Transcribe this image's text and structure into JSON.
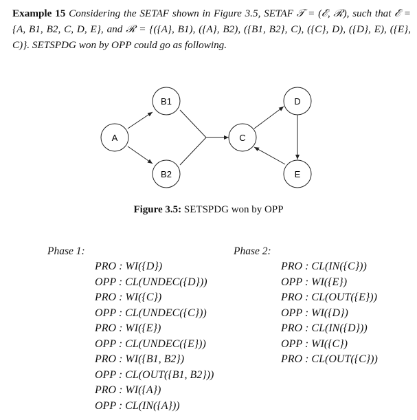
{
  "example": {
    "label": "Example 15",
    "text": "Considering the SETAF shown in Figure 3.5, SETAF 𝒯 = (ℰ, ℛ), such that ℰ = {A, B1, B2, C, D, E}, and ℛ = {({A}, B1), ({A}, B2), ({B1, B2}, C), ({C}, D), ({D}, E), ({E}, C)}. SETSPDG won by OPP could go as following."
  },
  "figure": {
    "nodes": [
      {
        "id": "A",
        "label": "A"
      },
      {
        "id": "B1",
        "label": "B1"
      },
      {
        "id": "B2",
        "label": "B2"
      },
      {
        "id": "C",
        "label": "C"
      },
      {
        "id": "D",
        "label": "D"
      },
      {
        "id": "E",
        "label": "E"
      }
    ],
    "edges": [
      {
        "from": [
          "A"
        ],
        "to": "B1"
      },
      {
        "from": [
          "A"
        ],
        "to": "B2"
      },
      {
        "from": [
          "B1",
          "B2"
        ],
        "to": "C"
      },
      {
        "from": [
          "C"
        ],
        "to": "D"
      },
      {
        "from": [
          "D"
        ],
        "to": "E"
      },
      {
        "from": [
          "E"
        ],
        "to": "C"
      }
    ],
    "caption_label": "Figure 3.5:",
    "caption_text": "SETSPDG won by OPP"
  },
  "phase1": {
    "title": "Phase 1:",
    "moves": [
      "PRO : WI({D})",
      "OPP : CL(UNDEC({D}))",
      "PRO : WI({C})",
      "OPP : CL(UNDEC({C}))",
      "PRO : WI({E})",
      "OPP : CL(UNDEC({E}))",
      "PRO : WI({B1, B2})",
      "OPP : CL(OUT({B1, B2}))",
      "PRO : WI({A})",
      "OPP : CL(IN({A}))"
    ]
  },
  "phase2": {
    "title": "Phase 2:",
    "moves": [
      "PRO : CL(IN({C}))",
      "OPP : WI({E})",
      "PRO : CL(OUT({E}))",
      "OPP : WI({D})",
      "PRO : CL(IN({D}))",
      "OPP : WI({C})",
      "PRO : CL(OUT({C}))"
    ]
  }
}
